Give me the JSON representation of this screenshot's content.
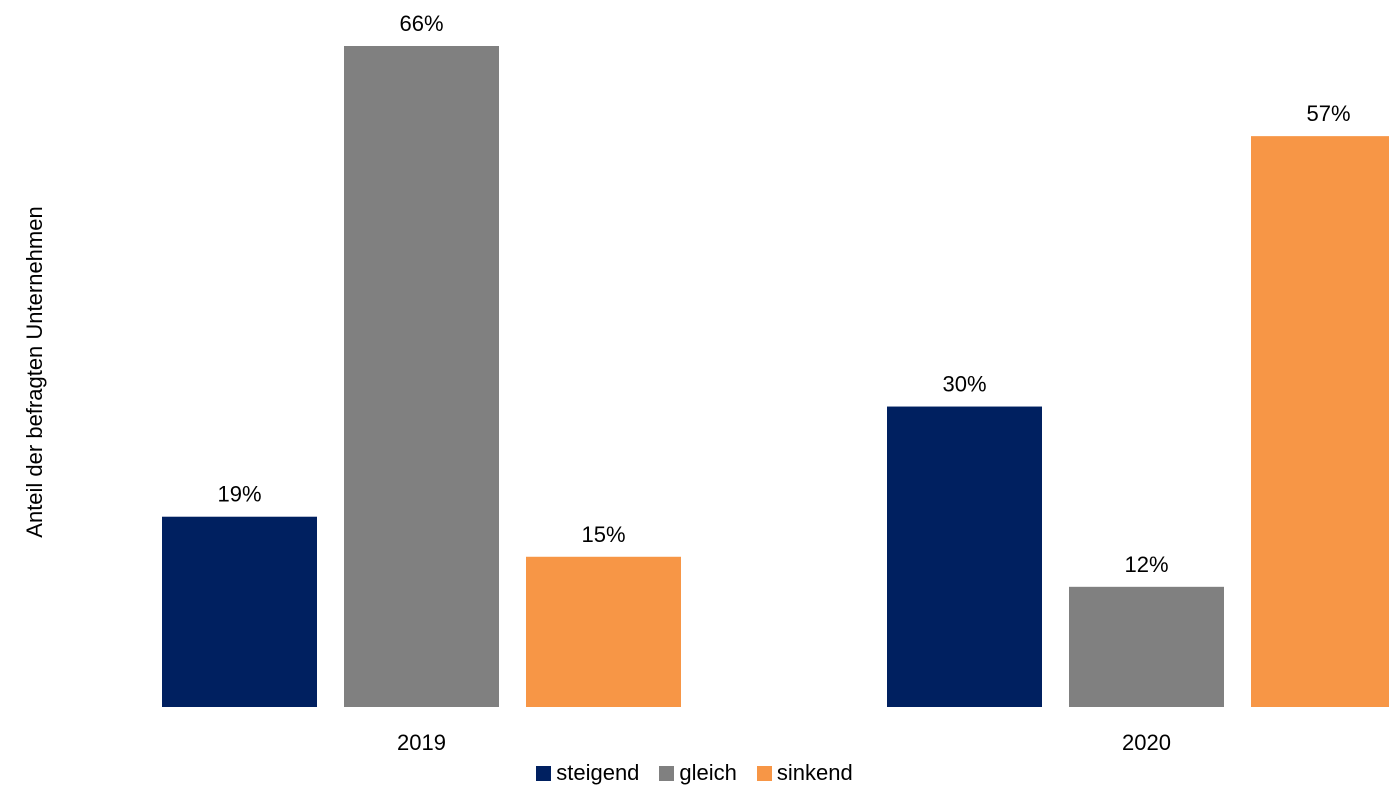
{
  "chart_data": {
    "type": "bar",
    "categories": [
      "2019",
      "2020"
    ],
    "series": [
      {
        "name": "steigend",
        "values": [
          19,
          30
        ],
        "color": "#002060"
      },
      {
        "name": "gleich",
        "values": [
          66,
          12
        ],
        "color": "#808080"
      },
      {
        "name": "sinkend",
        "values": [
          15,
          57
        ],
        "color": "#F79646"
      }
    ],
    "data_labels": [
      [
        "19%",
        "30%"
      ],
      [
        "66%",
        "12%"
      ],
      [
        "15%",
        "57%"
      ]
    ],
    "ylabel": "Anteil der befragten Unternehmen",
    "ylim": [
      0,
      66
    ],
    "grid": false,
    "legend_position": "bottom"
  }
}
